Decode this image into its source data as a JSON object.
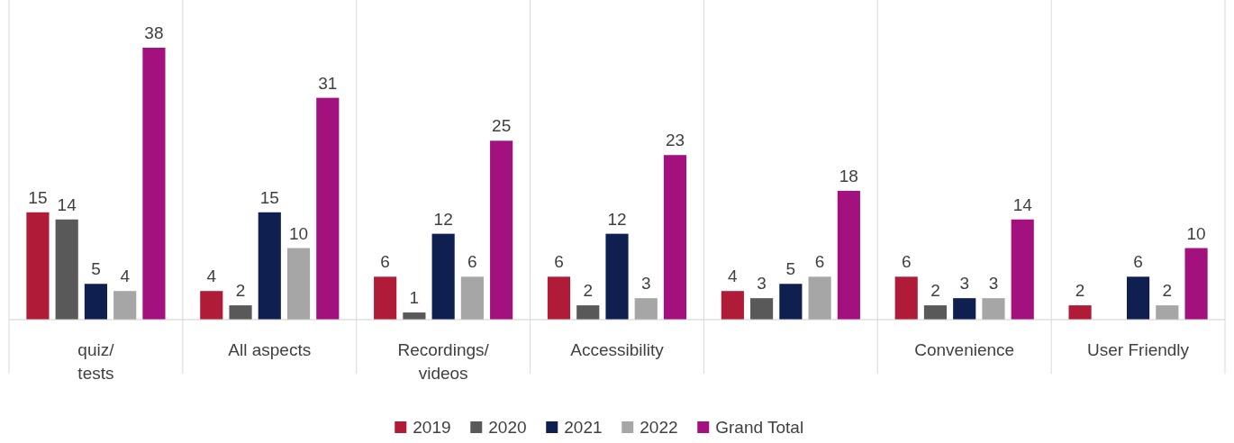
{
  "chart_data": {
    "type": "bar",
    "categories": [
      "quiz/tests",
      "All aspects",
      "Recordings/videos",
      "Accessibility",
      null,
      "Convenience",
      "User Friendly"
    ],
    "series": [
      {
        "name": "2019",
        "color": "#b01c37",
        "values": [
          15,
          4,
          6,
          6,
          4,
          6,
          2
        ]
      },
      {
        "name": "2020",
        "color": "#595959",
        "values": [
          14,
          2,
          1,
          2,
          3,
          2,
          null
        ]
      },
      {
        "name": "2021",
        "color": "#0f1f4f",
        "values": [
          5,
          15,
          12,
          12,
          5,
          3,
          6
        ]
      },
      {
        "name": "2022",
        "color": "#a6a6a6",
        "values": [
          4,
          10,
          6,
          3,
          6,
          3,
          2
        ]
      },
      {
        "name": "Grand Total",
        "color": "#a3117f",
        "values": [
          38,
          31,
          25,
          23,
          18,
          14,
          10
        ]
      }
    ],
    "data_labels": true,
    "legend": "bottom",
    "grid": false
  }
}
